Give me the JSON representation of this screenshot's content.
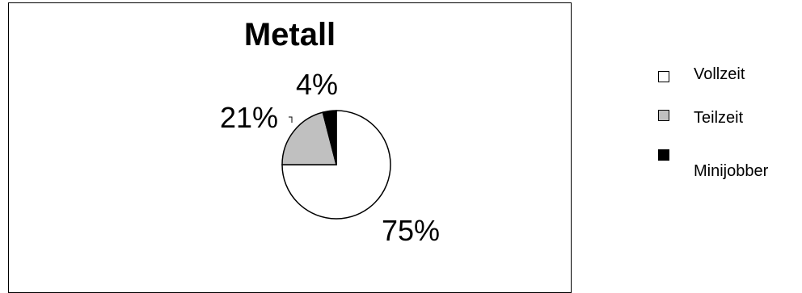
{
  "chart_data": {
    "type": "pie",
    "title": "Metall",
    "slices": [
      {
        "label": "Vollzeit",
        "value": 75,
        "data_label": "75%",
        "color": "#ffffff"
      },
      {
        "label": "Teilzeit",
        "value": 21,
        "data_label": "21%",
        "color": "#c0c0c0"
      },
      {
        "label": "Minijobber",
        "value": 4,
        "data_label": "4%",
        "color": "#000000"
      }
    ],
    "legend_position": "right"
  }
}
